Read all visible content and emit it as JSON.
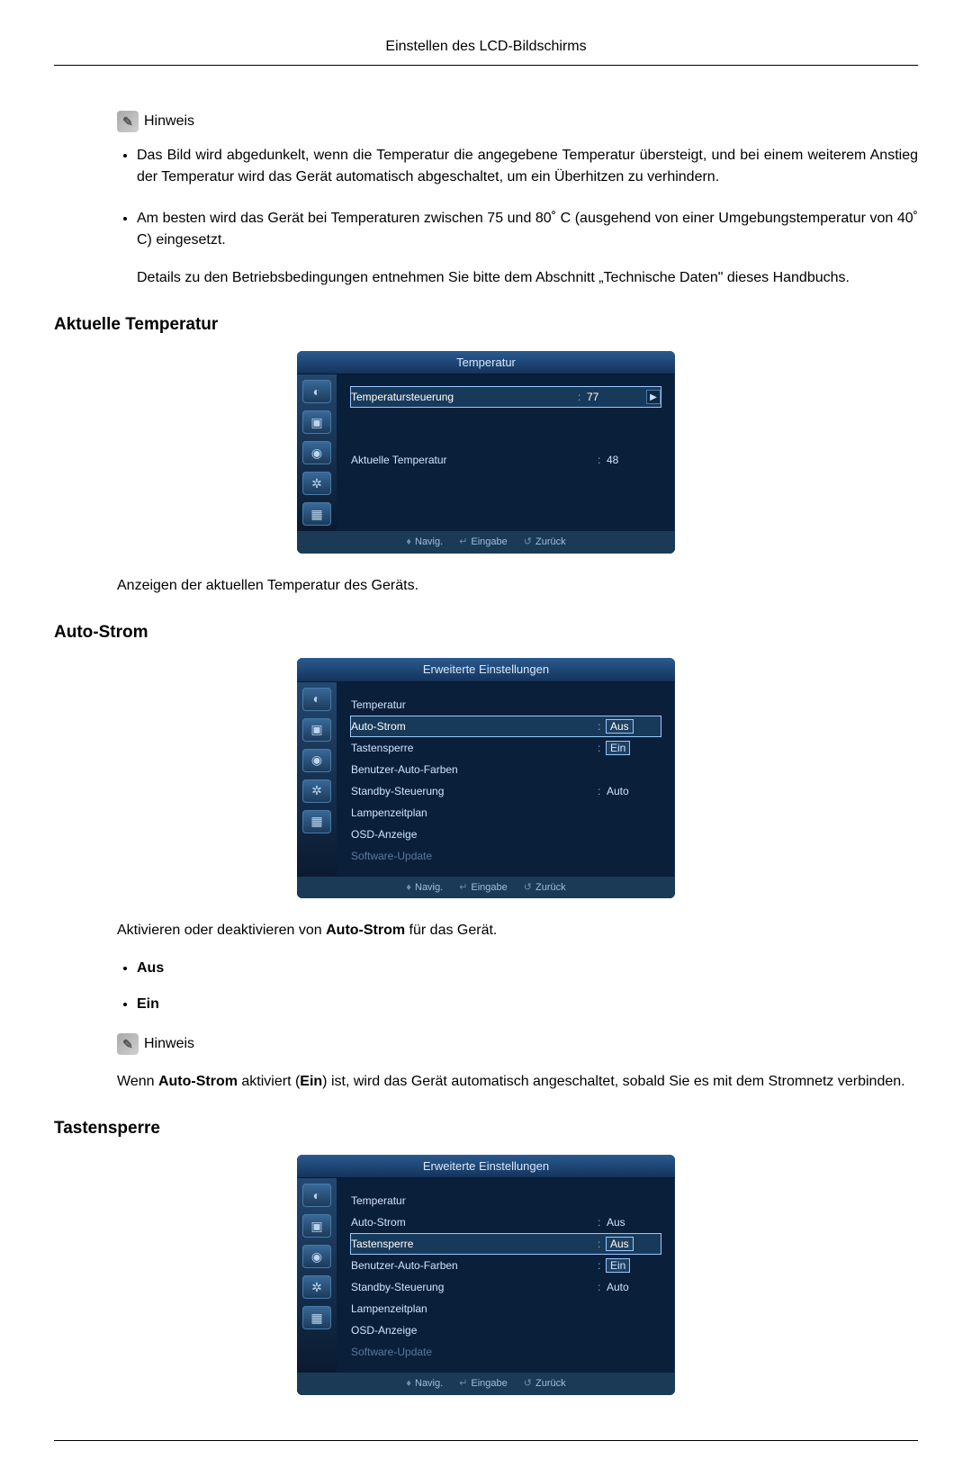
{
  "header": {
    "title": "Einstellen des LCD-Bildschirms"
  },
  "note": {
    "icon_text": "✎",
    "label": "Hinweis"
  },
  "bullets1": {
    "item1": "Das Bild wird abgedunkelt, wenn die Temperatur die angegebene Temperatur übersteigt, und bei einem weiterem Anstieg der Temperatur wird das Gerät automatisch abgeschaltet, um ein Überhitzen zu verhindern.",
    "item2a": "Am besten wird das Gerät bei Temperaturen zwischen 75 und 80˚ C (ausgehend von einer Umgebungstemperatur von 40˚ C) eingesetzt.",
    "item2b": "Details zu den Betriebsbedingungen entnehmen Sie bitte dem Abschnitt „Technische Daten\" dieses Handbuchs."
  },
  "section1": {
    "heading": "Aktuelle Temperatur",
    "caption": "Anzeigen der aktuellen Temperatur des Geräts."
  },
  "section2": {
    "heading": "Auto-Strom",
    "caption_pre": "Aktivieren oder deaktivieren von ",
    "caption_bold": "Auto-Strom",
    "caption_post": " für das Gerät.",
    "opt1": "Aus",
    "opt2": "Ein",
    "note_pre": "Wenn ",
    "note_b1": "Auto-Strom",
    "note_mid": " aktiviert (",
    "note_b2": "Ein",
    "note_post": ") ist, wird das Gerät automatisch angeschaltet, sobald Sie es mit dem Stromnetz verbinden."
  },
  "section3": {
    "heading": "Tastensperre"
  },
  "osd_shared": {
    "footer": {
      "nav": "Navig.",
      "enter": "Eingabe",
      "back": "Zurück"
    },
    "icons": {
      "nav": "♦",
      "enter": "↵",
      "back": "↺"
    },
    "tabs": [
      "◐",
      "▣",
      "◉",
      "✲",
      "▦"
    ]
  },
  "osd1": {
    "title": "Temperatur",
    "row1": {
      "label": "Temperatursteuerung",
      "value": "77"
    },
    "row2": {
      "label": "Aktuelle Temperatur",
      "value": "48"
    },
    "colors": {
      "bg": "#0a1f3a",
      "title_grad_a": "#2a5a90",
      "title_grad_b": "#14345a",
      "highlight": "#9ac8ff"
    }
  },
  "osd2": {
    "title": "Erweiterte Einstellungen",
    "rows": [
      {
        "label": "Temperatur",
        "value": ""
      },
      {
        "label": "Auto-Strom",
        "value": "Aus",
        "selected": true
      },
      {
        "label": "Tastensperre",
        "value": "Ein",
        "valbox": true
      },
      {
        "label": "Benutzer-Auto-Farben",
        "value": ""
      },
      {
        "label": "Standby-Steuerung",
        "value": "Auto"
      },
      {
        "label": "Lampenzeitplan",
        "value": ""
      },
      {
        "label": "OSD-Anzeige",
        "value": ""
      },
      {
        "label": "Software-Update",
        "value": "",
        "dim": true
      }
    ]
  },
  "osd3": {
    "title": "Erweiterte Einstellungen",
    "rows": [
      {
        "label": "Temperatur",
        "value": ""
      },
      {
        "label": "Auto-Strom",
        "value": "Aus"
      },
      {
        "label": "Tastensperre",
        "value": "Aus",
        "selected": true
      },
      {
        "label": "Benutzer-Auto-Farben",
        "value": "Ein",
        "valbox": true
      },
      {
        "label": "Standby-Steuerung",
        "value": "Auto"
      },
      {
        "label": "Lampenzeitplan",
        "value": ""
      },
      {
        "label": "OSD-Anzeige",
        "value": ""
      },
      {
        "label": "Software-Update",
        "value": "",
        "dim": true
      }
    ]
  }
}
